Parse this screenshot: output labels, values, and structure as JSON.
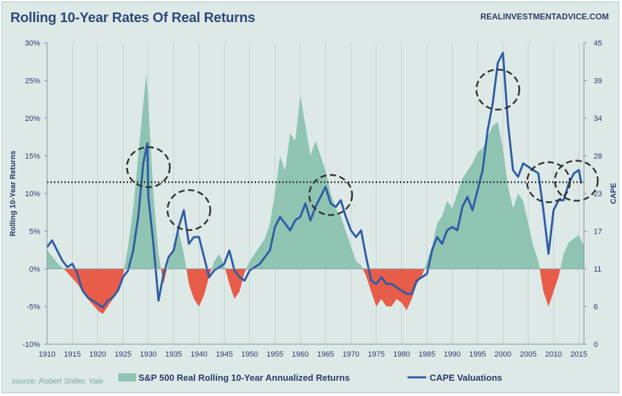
{
  "header": {
    "title": "Rolling 10-Year Rates Of Real Returns",
    "brand": "REALINVESTMENTADVICE.COM",
    "source": "source: Robert Shiller, Yale"
  },
  "colors": {
    "background": "#dde9e7",
    "returns_positive": "#8fc4b3",
    "returns_negative": "#e85c4a",
    "cape_line": "#2f5ca4",
    "average_line": "#333333",
    "circles": "#333333"
  },
  "chart_data": {
    "type": "area",
    "title": "Rolling 10-Year Rates Of Real Returns",
    "xlim": [
      1910,
      2016
    ],
    "x_ticks": [
      "1910",
      "1915",
      "1920",
      "1925",
      "1930",
      "1935",
      "1940",
      "1945",
      "1950",
      "1955",
      "1960",
      "1965",
      "1970",
      "1975",
      "1980",
      "1985",
      "1990",
      "1995",
      "2000",
      "2005",
      "2010",
      "2015"
    ],
    "y_left": {
      "label": "Rolling 10-Year Returns",
      "ylim": [
        -10,
        30
      ],
      "ticks": [
        "-10%",
        "-5%",
        "0%",
        "5%",
        "10%",
        "15%",
        "20%",
        "25%",
        "30%"
      ],
      "tick_values": [
        -10,
        -5,
        0,
        5,
        10,
        15,
        20,
        25,
        30
      ]
    },
    "y_right": {
      "label": "CAPE",
      "ylim": [
        0,
        45
      ],
      "ticks": [
        "0",
        "6",
        "11",
        "17",
        "23",
        "28",
        "34",
        "39",
        "45"
      ],
      "tick_values": [
        0,
        5.625,
        11.25,
        16.875,
        22.5,
        28.125,
        33.75,
        39.375,
        45
      ]
    },
    "grid": "vertical",
    "legend_position": "bottom",
    "average_line_left": 11.5,
    "series": [
      {
        "name": "S&P 500 Real Rolling 10-Year Annualized Returns",
        "type": "area",
        "axis": "left",
        "x": [
          1910,
          1912,
          1914,
          1916,
          1918,
          1920,
          1921,
          1922,
          1924,
          1925,
          1926,
          1927,
          1928,
          1929,
          1929.6,
          1930,
          1931,
          1932,
          1933,
          1934,
          1935,
          1936,
          1937,
          1938,
          1939,
          1940,
          1941,
          1942,
          1943,
          1944,
          1945,
          1946,
          1947,
          1948,
          1949,
          1950,
          1951,
          1952,
          1953,
          1954,
          1955,
          1956,
          1957,
          1958,
          1959,
          1960,
          1961,
          1962,
          1963,
          1964,
          1965,
          1966,
          1967,
          1968,
          1969,
          1970,
          1971,
          1972,
          1973,
          1974,
          1975,
          1976,
          1977,
          1978,
          1979,
          1980,
          1981,
          1982,
          1983,
          1984,
          1985,
          1986,
          1987,
          1988,
          1989,
          1990,
          1991,
          1992,
          1993,
          1994,
          1995,
          1996,
          1997,
          1998,
          1999,
          2000,
          2001,
          2002,
          2003,
          2004,
          2005,
          2006,
          2007,
          2008,
          2009,
          2010,
          2011,
          2012,
          2013,
          2014,
          2015,
          2016
        ],
        "values": [
          2.5,
          0.8,
          -0.5,
          -2.0,
          -4.0,
          -5.5,
          -6.0,
          -5.0,
          -3.0,
          -1.0,
          3.0,
          8.0,
          15.0,
          22.0,
          26.0,
          22.0,
          10.0,
          2.0,
          -2.0,
          1.0,
          3.0,
          5.0,
          2.0,
          -2.0,
          -4.0,
          -5.0,
          -3.5,
          -1.0,
          1.0,
          2.0,
          0.5,
          -2.0,
          -4.0,
          -3.0,
          -0.5,
          1.0,
          2.0,
          3.0,
          4.0,
          6.0,
          10.0,
          15.0,
          13.0,
          18.0,
          17.0,
          23.0,
          19.0,
          15.0,
          17.0,
          15.0,
          13.0,
          10.0,
          8.0,
          7.0,
          5.0,
          3.0,
          1.0,
          0.5,
          -1.0,
          -3.0,
          -5.0,
          -4.0,
          -5.0,
          -5.0,
          -4.0,
          -4.5,
          -5.5,
          -4.0,
          -2.0,
          -1.0,
          1.0,
          3.0,
          6.0,
          7.0,
          9.0,
          8.0,
          10.0,
          12.0,
          13.0,
          14.0,
          15.5,
          16.0,
          17.5,
          19.0,
          19.5,
          16.0,
          11.0,
          8.0,
          10.0,
          9.0,
          6.0,
          3.0,
          1.0,
          -3.0,
          -5.0,
          -3.0,
          -1.0,
          2.0,
          3.5,
          4.0,
          4.5,
          3.0
        ]
      },
      {
        "name": "CAPE Valuations",
        "type": "line",
        "axis": "right",
        "x": [
          1910,
          1911,
          1912,
          1913,
          1914,
          1915,
          1916,
          1917,
          1918,
          1919,
          1920,
          1921,
          1922,
          1923,
          1924,
          1925,
          1926,
          1927,
          1928,
          1929,
          1929.8,
          1930,
          1931,
          1932,
          1933,
          1934,
          1935,
          1936,
          1937,
          1938,
          1939,
          1940,
          1941,
          1942,
          1943,
          1944,
          1945,
          1946,
          1947,
          1948,
          1949,
          1950,
          1951,
          1952,
          1953,
          1954,
          1955,
          1956,
          1957,
          1958,
          1959,
          1960,
          1961,
          1962,
          1963,
          1964,
          1965,
          1966,
          1967,
          1968,
          1969,
          1970,
          1971,
          1972,
          1973,
          1974,
          1975,
          1976,
          1977,
          1978,
          1979,
          1980,
          1981,
          1982,
          1983,
          1984,
          1985,
          1986,
          1987,
          1988,
          1989,
          1990,
          1991,
          1992,
          1993,
          1994,
          1995,
          1996,
          1997,
          1998,
          1999,
          2000,
          2001,
          2002,
          2003,
          2004,
          2005,
          2006,
          2007,
          2008,
          2009,
          2010,
          2011,
          2012,
          2013,
          2014,
          2015,
          2015.5
        ],
        "values": [
          14.5,
          15.5,
          14.0,
          12.5,
          11.5,
          12.0,
          10.5,
          8.0,
          7.0,
          6.5,
          6.0,
          5.5,
          6.5,
          7.0,
          8.0,
          10.0,
          11.0,
          14.0,
          19.0,
          27.0,
          30.0,
          22.0,
          15.0,
          6.5,
          10.5,
          13.0,
          14.0,
          17.5,
          20.0,
          15.0,
          16.0,
          16.0,
          13.0,
          10.0,
          11.0,
          11.5,
          12.0,
          14.0,
          11.0,
          10.0,
          9.5,
          11.0,
          11.5,
          12.0,
          13.0,
          14.0,
          17.5,
          19.0,
          18.0,
          17.0,
          18.5,
          19.0,
          21.0,
          18.5,
          20.5,
          22.0,
          23.5,
          21.0,
          20.5,
          21.5,
          19.0,
          17.0,
          16.0,
          17.0,
          13.0,
          9.5,
          9.0,
          10.0,
          9.0,
          9.0,
          8.5,
          8.0,
          7.5,
          7.5,
          9.5,
          10.0,
          10.5,
          14.0,
          16.0,
          15.0,
          17.0,
          17.5,
          17.0,
          20.5,
          22.0,
          20.0,
          23.0,
          26.0,
          32.0,
          36.0,
          42.0,
          43.5,
          33.0,
          26.0,
          25.0,
          27.0,
          26.5,
          26.0,
          25.5,
          20.0,
          13.5,
          20.0,
          21.5,
          21.5,
          24.0,
          25.5,
          26.0,
          24.0
        ]
      }
    ],
    "circles": [
      {
        "cx": 1930,
        "cy": 13.5
      },
      {
        "cx": 1938,
        "cy": 7.8
      },
      {
        "cx": 1966,
        "cy": 9.8
      },
      {
        "cx": 1999,
        "cy": 23.8
      },
      {
        "cx": 2009,
        "cy": 11.5
      },
      {
        "cx": 2014.5,
        "cy": 11.7
      }
    ]
  }
}
